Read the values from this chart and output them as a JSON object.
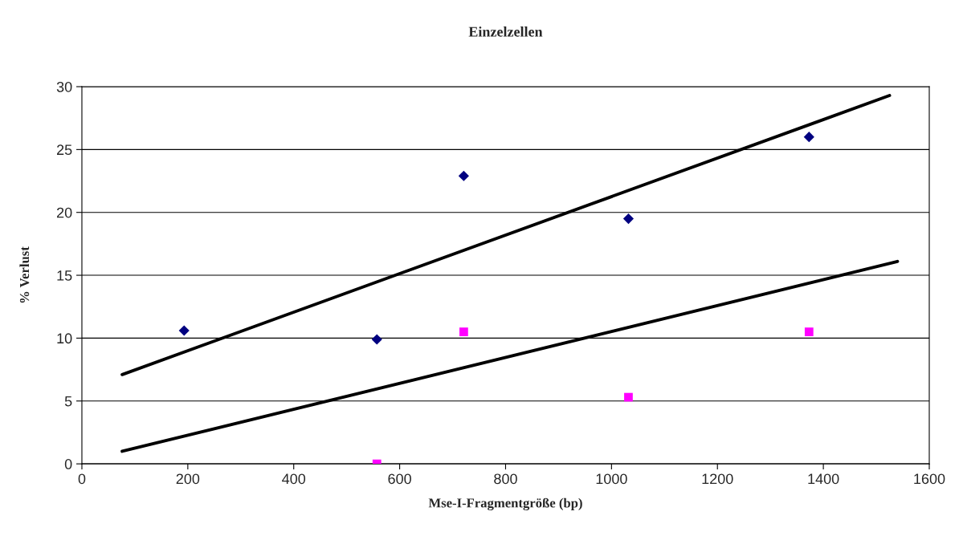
{
  "chart_data": {
    "type": "scatter",
    "title": "Einzelzellen",
    "xlabel": "Mse-I-Fragmentgröße (bp)",
    "ylabel": "% Verlust",
    "xlim": [
      0,
      1600
    ],
    "xticks": [
      0,
      200,
      400,
      600,
      800,
      1000,
      1200,
      1400,
      1600
    ],
    "ylim": [
      0,
      30
    ],
    "yticks": [
      0,
      5,
      10,
      15,
      20,
      25,
      30
    ],
    "grid": "y",
    "legend": false,
    "series": [
      {
        "marker": "diamond",
        "color": "#000080",
        "x": [
          193,
          557,
          721,
          1032,
          1373
        ],
        "values": [
          10.6,
          9.9,
          22.9,
          19.5,
          26.0
        ]
      },
      {
        "marker": "square",
        "color": "#ff00ff",
        "x": [
          557,
          721,
          1032,
          1373
        ],
        "values": [
          0,
          10.5,
          5.3,
          10.5
        ]
      },
      {
        "type": "line",
        "marker": "none",
        "line_style": "solid",
        "color": "#000000",
        "x": [
          76,
          1525
        ],
        "values": [
          7.1,
          29.3
        ]
      },
      {
        "type": "line",
        "marker": "none",
        "line_style": "solid",
        "color": "#000000",
        "x": [
          76,
          1540
        ],
        "values": [
          1.0,
          16.1
        ]
      }
    ]
  }
}
